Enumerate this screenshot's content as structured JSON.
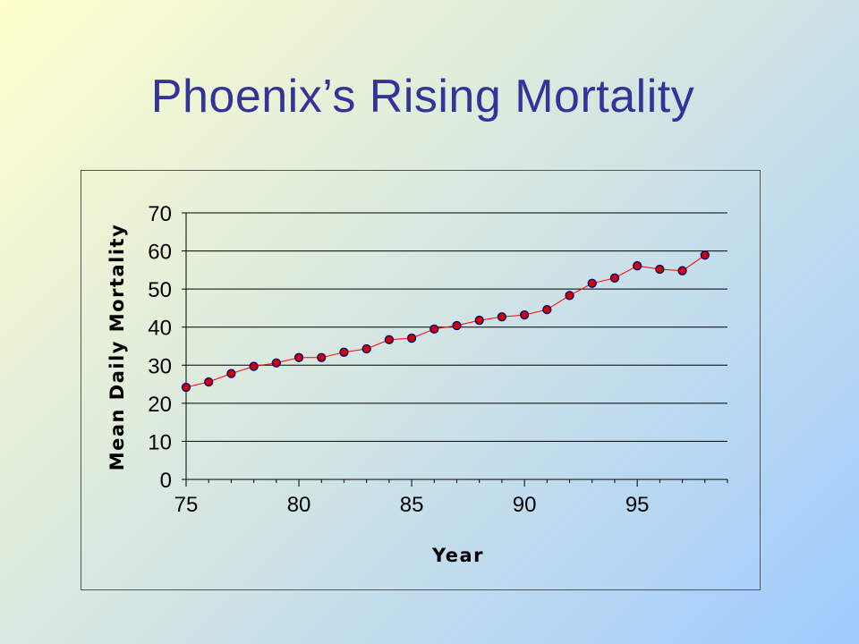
{
  "slide": {
    "title": "Phoenix’s Rising Mortality"
  },
  "colors": {
    "title": "#333399",
    "line": "#ff0000",
    "marker_fill": "#cc0000",
    "marker_edge": "#000080",
    "grid": "#000000"
  },
  "chart_data": {
    "type": "line",
    "title": "",
    "xlabel": "Year",
    "ylabel": "Mean Daily Mortality",
    "xlim": [
      75,
      99
    ],
    "ylim": [
      0,
      70
    ],
    "xticks": [
      75,
      80,
      85,
      90,
      95
    ],
    "yticks": [
      0,
      10,
      20,
      30,
      40,
      50,
      60,
      70
    ],
    "grid": "horizontal",
    "legend": "none",
    "series": [
      {
        "x": [
          75,
          76,
          77,
          78,
          79,
          80,
          81,
          82,
          83,
          84,
          85,
          86,
          87,
          88,
          89,
          90,
          91,
          92,
          93,
          94,
          95,
          96,
          97,
          98
        ],
        "y": [
          24.2,
          25.6,
          27.8,
          29.7,
          30.6,
          32.0,
          32.0,
          33.4,
          34.3,
          36.7,
          37.1,
          39.5,
          40.4,
          41.8,
          42.7,
          43.2,
          44.6,
          48.3,
          51.5,
          52.9,
          56.1,
          55.2,
          54.8,
          58.9
        ]
      }
    ]
  }
}
